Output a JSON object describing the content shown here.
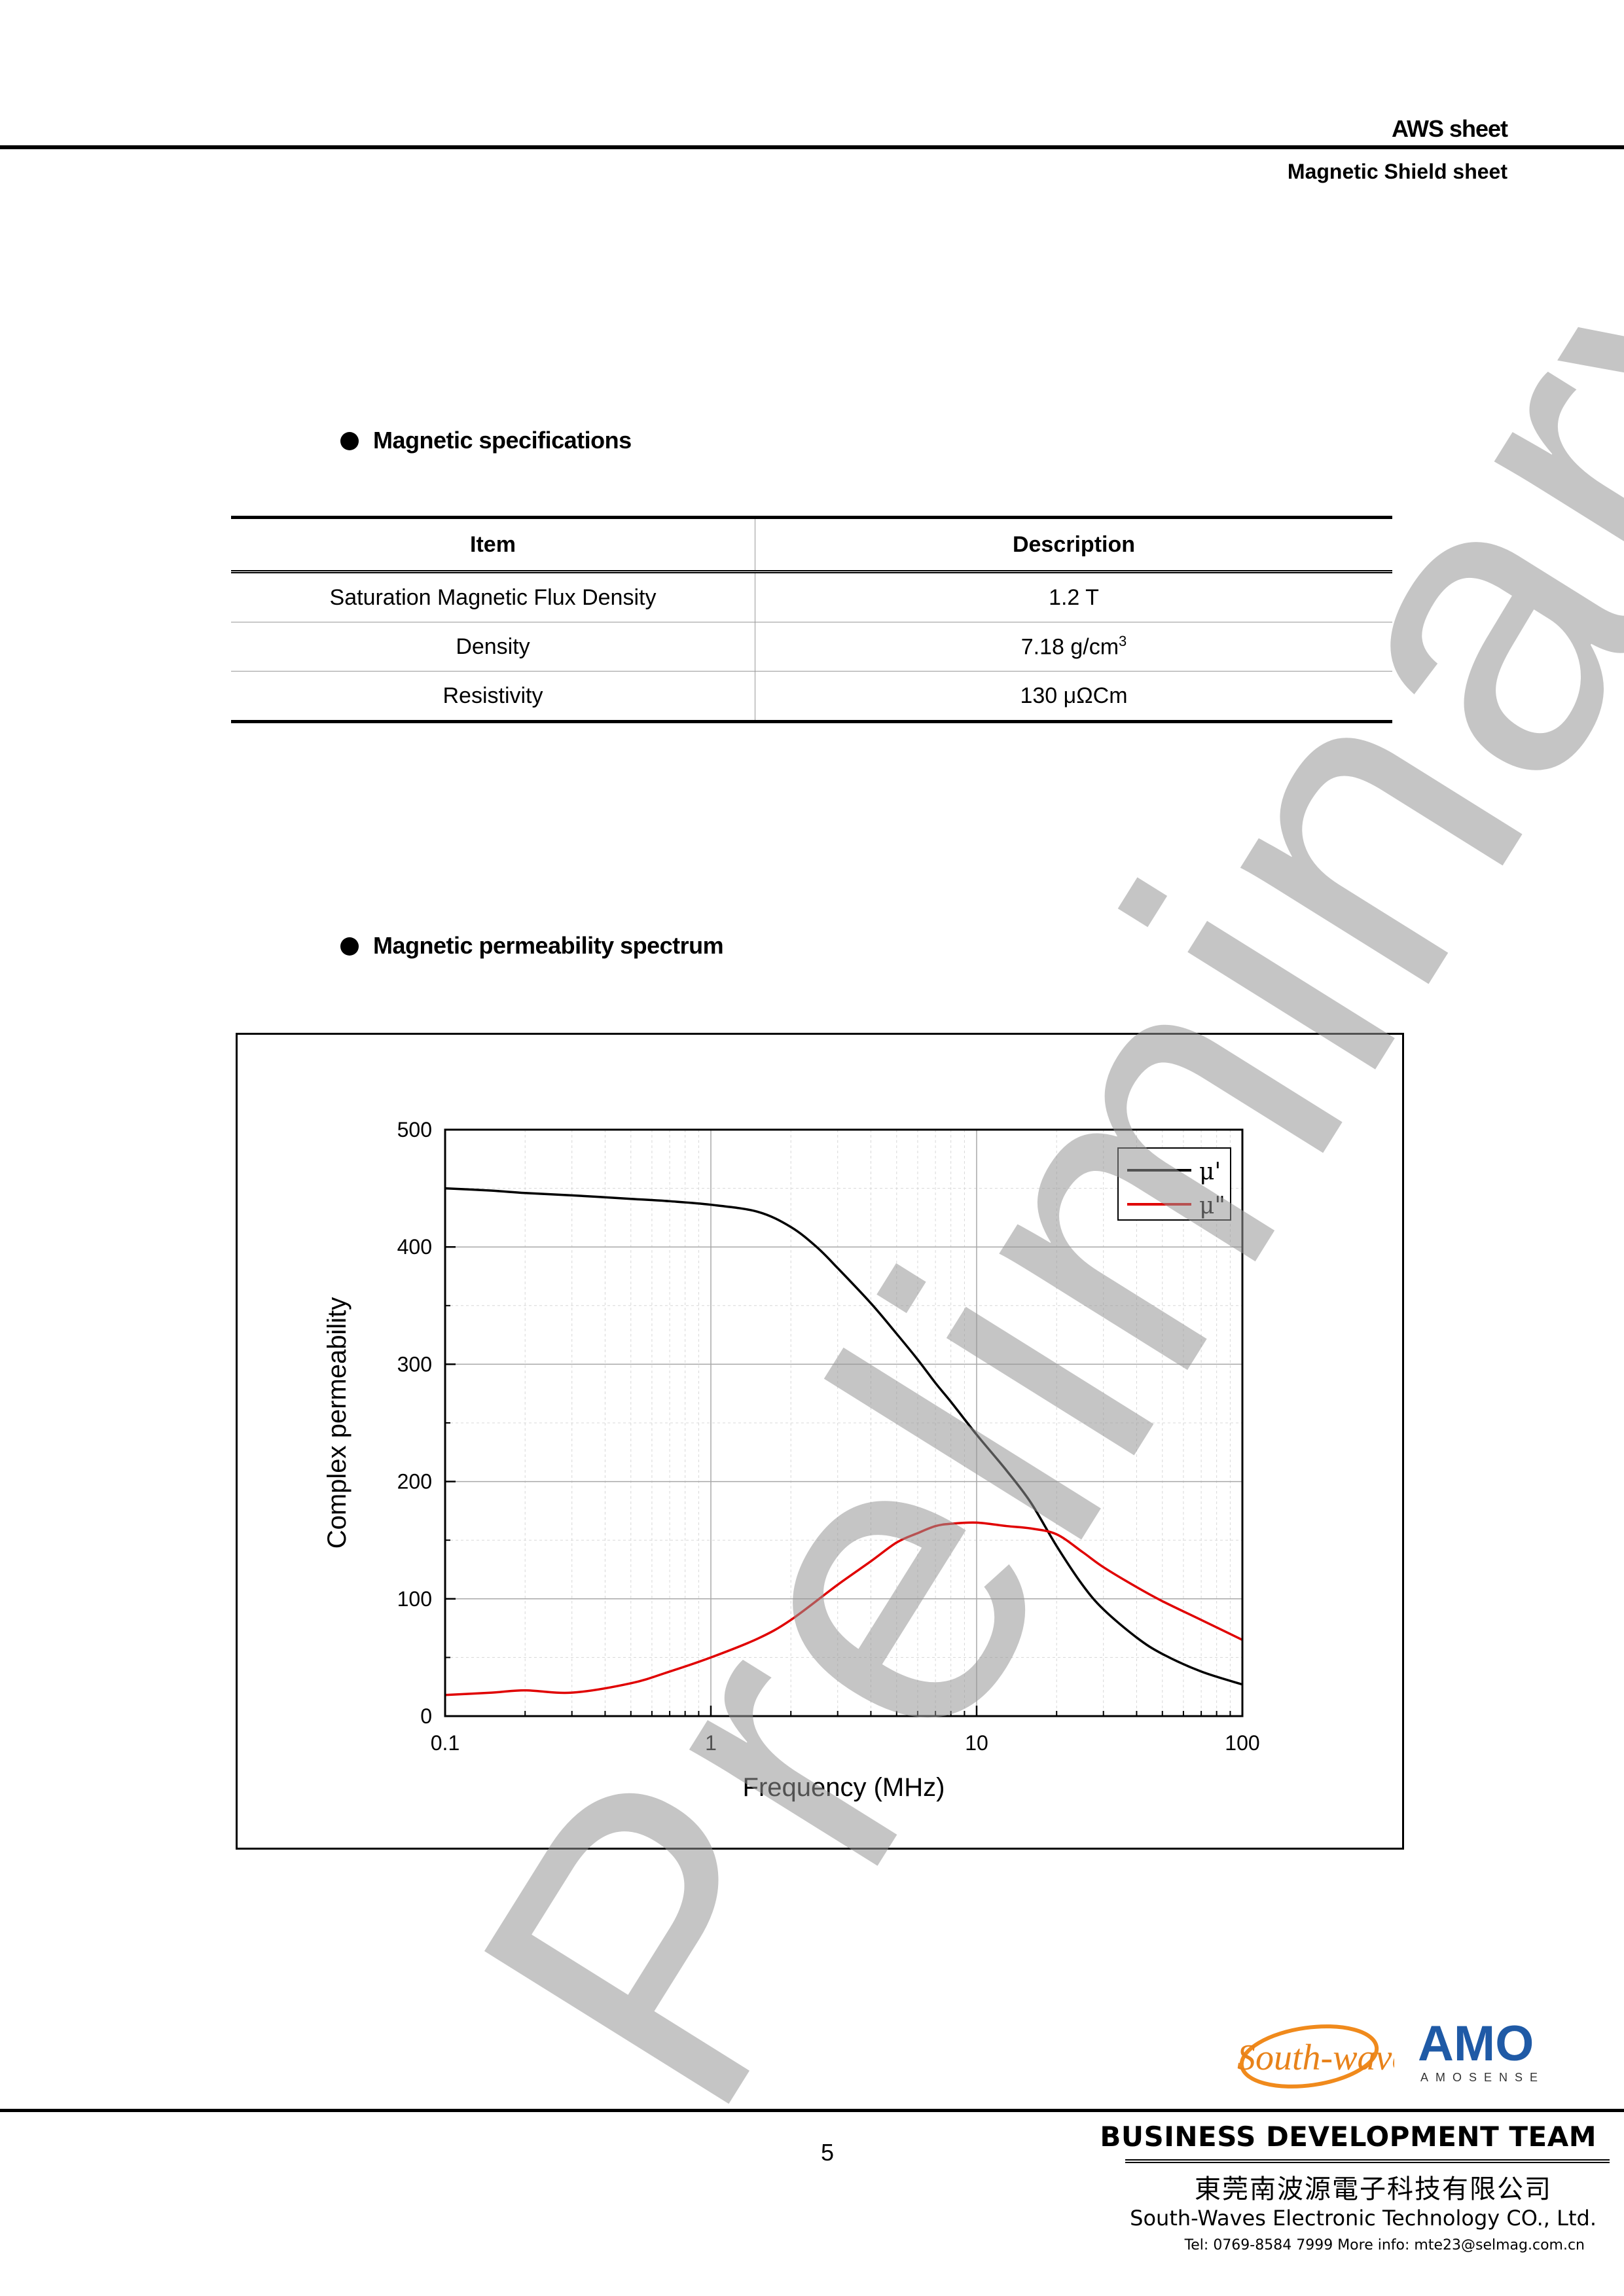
{
  "header": {
    "title": "AWS sheet",
    "subtitle": "Magnetic Shield sheet"
  },
  "sections": {
    "specs_title": "Magnetic specifications",
    "spectrum_title": "Magnetic permeability spectrum"
  },
  "table": {
    "headers": [
      "Item",
      "Description"
    ],
    "rows": [
      {
        "item": "Saturation Magnetic Flux Density",
        "value": "1.2 T",
        "sup": ""
      },
      {
        "item": "Density",
        "value": "7.18 g/cm",
        "sup": "3"
      },
      {
        "item": "Resistivity",
        "value": "130 μΩCm",
        "sup": ""
      }
    ]
  },
  "watermark": "Preliminary",
  "chart_data": {
    "type": "line",
    "title": "",
    "xlabel": "Frequency (MHz)",
    "ylabel": "Complex permeability",
    "xscale": "log",
    "xlim": [
      0.1,
      100
    ],
    "ylim": [
      0,
      500
    ],
    "xticks": [
      "0.1",
      "1",
      "10",
      "100"
    ],
    "yticks": [
      "0",
      "100",
      "200",
      "300",
      "400",
      "500"
    ],
    "grid": true,
    "legend": "top-right",
    "series": [
      {
        "name": "μ'",
        "color": "#000000",
        "x": [
          0.1,
          0.15,
          0.2,
          0.3,
          0.5,
          0.7,
          1,
          1.5,
          2,
          2.5,
          3,
          4,
          5,
          6,
          7,
          8,
          10,
          13,
          16,
          20,
          25,
          30,
          40,
          50,
          70,
          100
        ],
        "y": [
          450,
          448,
          446,
          444,
          441,
          439,
          436,
          430,
          417,
          400,
          382,
          352,
          326,
          304,
          284,
          268,
          240,
          209,
          182,
          145,
          112,
          91,
          67,
          53,
          38,
          27
        ]
      },
      {
        "name": "μ\"",
        "color": "#e00000",
        "x": [
          0.1,
          0.15,
          0.2,
          0.3,
          0.5,
          0.7,
          1,
          1.5,
          2,
          3,
          4,
          5,
          6,
          7,
          8,
          10,
          13,
          16,
          20,
          25,
          30,
          40,
          50,
          70,
          100
        ],
        "y": [
          18,
          20,
          22,
          20,
          28,
          38,
          50,
          66,
          82,
          112,
          132,
          148,
          156,
          162,
          164,
          165,
          162,
          160,
          155,
          140,
          127,
          110,
          98,
          82,
          65
        ]
      }
    ]
  },
  "footer": {
    "page_number": "5",
    "logo_southwaves": "South-waves",
    "logo_amo": "AMO",
    "logo_amo_sub": "AMOSENSE",
    "team": "BUSINESS DEVELOPMENT TEAM",
    "company_cn": "東莞南波源電子科技有限公司",
    "company_en": "South-Waves Electronic Technology CO., Ltd.",
    "contact": "Tel: 0769-8584 7999     More info: mte23@selmag.com.cn"
  }
}
